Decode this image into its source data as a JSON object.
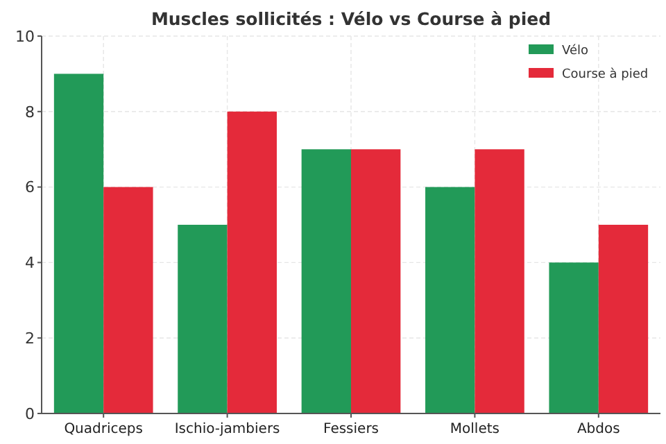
{
  "chart_data": {
    "type": "bar",
    "title": "Muscles sollicités : Vélo vs Course à pied",
    "categories": [
      "Quadriceps",
      "Ischio-jambiers",
      "Fessiers",
      "Mollets",
      "Abdos"
    ],
    "series": [
      {
        "name": "Vélo",
        "color": "#229a58",
        "values": [
          9,
          5,
          7,
          6,
          4
        ]
      },
      {
        "name": "Course à pied",
        "color": "#e42a3a",
        "values": [
          6,
          8,
          7,
          7,
          5
        ]
      }
    ],
    "ylim": [
      0,
      10
    ],
    "yticks": [
      0,
      2,
      4,
      6,
      8,
      10
    ],
    "grid": true,
    "legend": "top right"
  }
}
